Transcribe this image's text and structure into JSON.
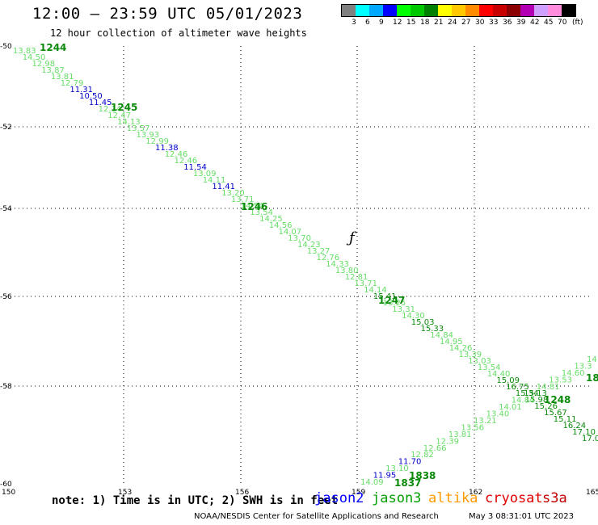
{
  "header": {
    "title": "12:00 – 23:59 UTC 05/01/2023",
    "subtitle": "12 hour collection of altimeter wave heights"
  },
  "legend": {
    "unit": "(ft)",
    "items": [
      {
        "label": "3",
        "color": "#808080"
      },
      {
        "label": "6",
        "color": "#00ffff"
      },
      {
        "label": "9",
        "color": "#00a8ff"
      },
      {
        "label": "12",
        "color": "#0000ff"
      },
      {
        "label": "15",
        "color": "#00ff00"
      },
      {
        "label": "18",
        "color": "#00c800"
      },
      {
        "label": "21",
        "color": "#008000"
      },
      {
        "label": "24",
        "color": "#ffff00"
      },
      {
        "label": "27",
        "color": "#ffc800"
      },
      {
        "label": "30",
        "color": "#ff8c00"
      },
      {
        "label": "33",
        "color": "#ff0000"
      },
      {
        "label": "36",
        "color": "#c80000"
      },
      {
        "label": "39",
        "color": "#8b0000"
      },
      {
        "label": "42",
        "color": "#b400b4"
      },
      {
        "label": "45",
        "color": "#d0a0ff"
      },
      {
        "label": "70",
        "color": "#ff8cdc"
      },
      {
        "label": "",
        "color": "#000000"
      }
    ]
  },
  "map": {
    "lon_ticks": [
      "150",
      "153",
      "156",
      "159",
      "162",
      "165"
    ],
    "lat_ticks": [
      "-50",
      "-52",
      "-54",
      "-56",
      "-58",
      "-60"
    ]
  },
  "tracks": {
    "colors": {
      "light": "#66dd66",
      "dark": "#0a8a0a",
      "blue": "#0000cc"
    },
    "pass_labels": [
      "1244",
      "1245",
      "1246",
      "1247",
      "1248",
      "1838",
      "1837",
      "18"
    ],
    "track1": [
      {
        "t": "13.83",
        "c": "light"
      },
      {
        "t": "14.50",
        "c": "light"
      },
      {
        "t": "12.98",
        "c": "light"
      },
      {
        "t": "13.87",
        "c": "light"
      },
      {
        "t": "13.81",
        "c": "light"
      },
      {
        "t": "12.79",
        "c": "light"
      },
      {
        "t": "11.31",
        "c": "blue"
      },
      {
        "t": "10.50",
        "c": "blue"
      },
      {
        "t": "11.45",
        "c": "blue"
      },
      {
        "t": "12.14",
        "c": "light"
      },
      {
        "t": "12.47",
        "c": "light"
      },
      {
        "t": "14.13",
        "c": "light"
      },
      {
        "t": "13.57",
        "c": "light"
      },
      {
        "t": "13.93",
        "c": "light"
      },
      {
        "t": "12.99",
        "c": "light"
      },
      {
        "t": "11.38",
        "c": "blue"
      },
      {
        "t": "12.46",
        "c": "light"
      },
      {
        "t": "12.46",
        "c": "light"
      },
      {
        "t": "11.54",
        "c": "blue"
      },
      {
        "t": "13.09",
        "c": "light"
      },
      {
        "t": "14.11",
        "c": "light"
      },
      {
        "t": "11.41",
        "c": "blue"
      },
      {
        "t": "13.20",
        "c": "light"
      },
      {
        "t": "13.71",
        "c": "light"
      },
      {
        "t": "14.54",
        "c": "light"
      },
      {
        "t": "13.54",
        "c": "light"
      },
      {
        "t": "14.25",
        "c": "light"
      },
      {
        "t": "14.56",
        "c": "light"
      },
      {
        "t": "14.07",
        "c": "light"
      },
      {
        "t": "13.70",
        "c": "light"
      },
      {
        "t": "14.23",
        "c": "light"
      },
      {
        "t": "13.27",
        "c": "light"
      },
      {
        "t": "12.76",
        "c": "light"
      },
      {
        "t": "14.33",
        "c": "light"
      },
      {
        "t": "13.80",
        "c": "light"
      },
      {
        "t": "12.81",
        "c": "light"
      },
      {
        "t": "13.71",
        "c": "light"
      },
      {
        "t": "14.14",
        "c": "light"
      },
      {
        "t": "15.41",
        "c": "dark"
      },
      {
        "t": "13.25",
        "c": "light"
      },
      {
        "t": "13.31",
        "c": "light"
      },
      {
        "t": "14.30",
        "c": "light"
      },
      {
        "t": "15.03",
        "c": "dark"
      },
      {
        "t": "15.33",
        "c": "dark"
      },
      {
        "t": "14.84",
        "c": "light"
      },
      {
        "t": "14.95",
        "c": "light"
      },
      {
        "t": "14.26",
        "c": "light"
      },
      {
        "t": "13.39",
        "c": "light"
      },
      {
        "t": "13.03",
        "c": "light"
      },
      {
        "t": "13.54",
        "c": "light"
      },
      {
        "t": "14.40",
        "c": "light"
      },
      {
        "t": "15.09",
        "c": "dark"
      },
      {
        "t": "16.75",
        "c": "dark"
      },
      {
        "t": "15.34",
        "c": "dark"
      },
      {
        "t": "15.98",
        "c": "dark"
      },
      {
        "t": "15.26",
        "c": "dark"
      },
      {
        "t": "15.67",
        "c": "dark"
      },
      {
        "t": "15.11",
        "c": "dark"
      },
      {
        "t": "16.24",
        "c": "dark"
      },
      {
        "t": "17.10",
        "c": "dark"
      },
      {
        "t": "17.0",
        "c": "dark"
      }
    ],
    "track2": [
      {
        "t": "14.09",
        "c": "light"
      },
      {
        "t": "11.95",
        "c": "blue"
      },
      {
        "t": "13.10",
        "c": "light"
      },
      {
        "t": "11.70",
        "c": "blue"
      },
      {
        "t": "12.82",
        "c": "light"
      },
      {
        "t": "12.66",
        "c": "light"
      },
      {
        "t": "12.39",
        "c": "light"
      },
      {
        "t": "13.81",
        "c": "light"
      },
      {
        "t": "13.56",
        "c": "light"
      },
      {
        "t": "13.21",
        "c": "light"
      },
      {
        "t": "13.40",
        "c": "light"
      },
      {
        "t": "14.01",
        "c": "light"
      },
      {
        "t": "14.84",
        "c": "light"
      },
      {
        "t": "15.13",
        "c": "dark"
      },
      {
        "t": "14.81",
        "c": "light"
      },
      {
        "t": "13.53",
        "c": "light"
      },
      {
        "t": "14.60",
        "c": "light"
      },
      {
        "t": "13.3",
        "c": "light"
      },
      {
        "t": "14",
        "c": "light"
      }
    ]
  },
  "footer": {
    "note": "note: 1) Time is in UTC; 2) SWH is in feet",
    "missions": [
      {
        "name": "jason2",
        "color": "#0000ff"
      },
      {
        "name": "jason3",
        "color": "#00a000"
      },
      {
        "name": "altika",
        "color": "#ff9900"
      },
      {
        "name": "cryosat",
        "color": "#e00000"
      },
      {
        "name": "s3a",
        "color": "#c00000"
      }
    ],
    "credit": "NOAA/NESDIS Center for Satellite Applications and Research",
    "timestamp": "May  3 08:31:01 UTC 2023"
  }
}
